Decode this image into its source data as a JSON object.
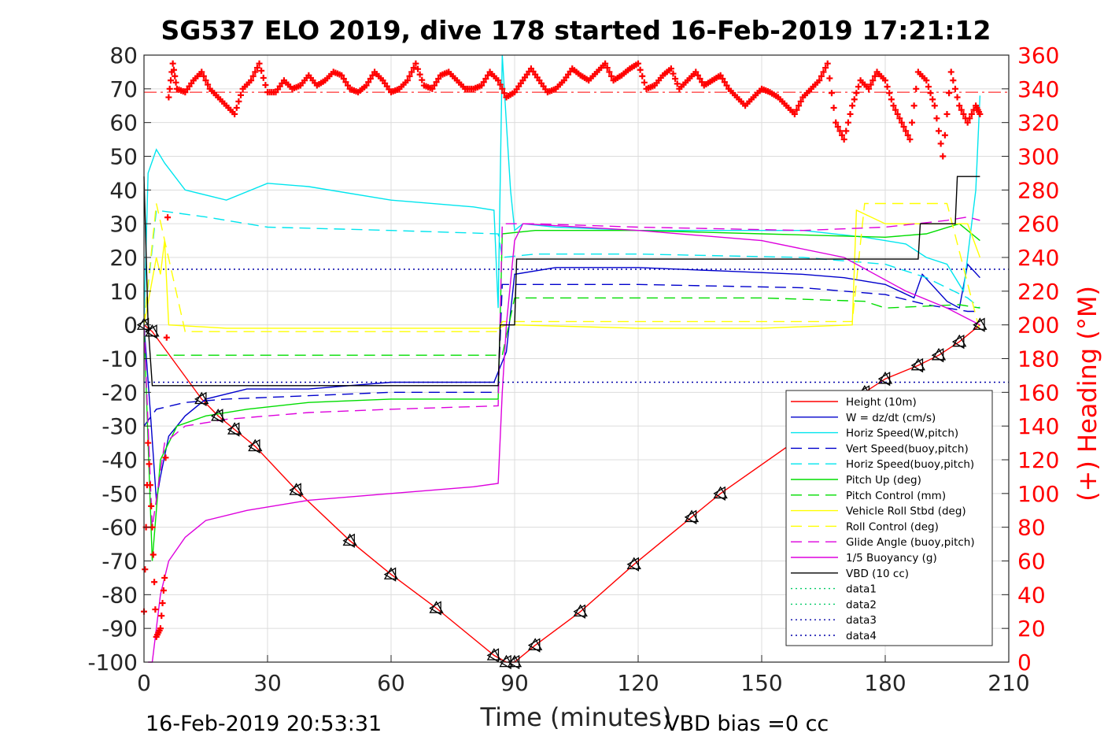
{
  "chart_data": {
    "type": "line",
    "title": "SG537 ELO 2019, dive 178 started 16-Feb-2019 17:21:12",
    "xlabel": "Time (minutes)",
    "ylabel_right": "(+) Heading (°M)",
    "footer_left": "16-Feb-2019 20:53:31",
    "footer_right": "VBD bias =0 cc",
    "xlim": [
      0,
      210
    ],
    "ylim": [
      -100,
      80
    ],
    "y2lim": [
      0,
      360
    ],
    "xticks": [
      0,
      30,
      60,
      90,
      120,
      150,
      180,
      210
    ],
    "yticks": [
      -100,
      -90,
      -80,
      -70,
      -60,
      -50,
      -40,
      -30,
      -20,
      -10,
      0,
      10,
      20,
      30,
      40,
      50,
      60,
      70,
      80
    ],
    "y2ticks": [
      0,
      20,
      40,
      60,
      80,
      100,
      120,
      140,
      160,
      180,
      200,
      220,
      240,
      260,
      280,
      300,
      320,
      340,
      360
    ],
    "grid": true,
    "legend_position": "lower-right",
    "heading_reference": 338,
    "colors": {
      "heading": "#ff0000",
      "axis_right": "#ff0000",
      "axis": "#262626"
    },
    "series": [
      {
        "name": "Height (10m)",
        "color": "#ff0000",
        "dash": "",
        "x": [
          0,
          2,
          14,
          18,
          22,
          27,
          37,
          50,
          60,
          71,
          85,
          88,
          90,
          95,
          106,
          119,
          133,
          140,
          175,
          180,
          188,
          193,
          198,
          203
        ],
        "y": [
          0,
          -2,
          -22,
          -27,
          -31,
          -36,
          -49,
          -64,
          -74,
          -84,
          -98,
          -100,
          -100,
          -95,
          -85,
          -71,
          -57,
          -50,
          -20,
          -16,
          -12,
          -9,
          -5,
          0
        ]
      },
      {
        "name": "W = dz/dt (cm/s)",
        "color": "#0000cc",
        "dash": "",
        "x": [
          0,
          1.5,
          3,
          4,
          6,
          10,
          15,
          25,
          40,
          60,
          80,
          85,
          88,
          90,
          100,
          120,
          140,
          160,
          170,
          180,
          187,
          189,
          195,
          198,
          200,
          203
        ],
        "y": [
          0,
          -25,
          -52,
          -45,
          -33,
          -27,
          -22,
          -19,
          -19,
          -17,
          -17,
          -17,
          -8,
          15,
          17,
          17,
          16,
          15,
          14,
          12,
          8,
          15,
          7,
          5,
          18,
          14
        ]
      },
      {
        "name": "Horiz Speed(W,pitch)",
        "color": "#00e5ee",
        "dash": "",
        "x": [
          0,
          1,
          3,
          5,
          10,
          20,
          30,
          40,
          60,
          80,
          85,
          86,
          87,
          88,
          89,
          90,
          92,
          100,
          120,
          140,
          160,
          175,
          185,
          190,
          195,
          199,
          202,
          203
        ],
        "y": [
          0,
          45,
          52,
          48,
          40,
          37,
          42,
          41,
          37,
          35,
          34,
          5,
          80,
          60,
          40,
          28,
          30,
          29,
          28,
          28,
          28,
          26,
          24,
          20,
          18,
          10,
          40,
          68
        ]
      },
      {
        "name": "Vert Speed(buoy,pitch)",
        "color": "#0000cc",
        "dash": "14,8",
        "x": [
          0,
          3,
          10,
          20,
          40,
          60,
          86,
          87,
          95,
          120,
          160,
          180,
          190,
          195,
          200,
          203
        ],
        "y": [
          -30,
          -25,
          -23,
          -22,
          -21,
          -20,
          -20,
          12,
          12,
          12,
          11,
          9,
          6,
          5,
          4,
          4
        ]
      },
      {
        "name": "Horiz Speed(buoy,pitch)",
        "color": "#00e5ee",
        "dash": "14,8",
        "x": [
          0,
          3,
          15,
          30,
          60,
          86,
          87,
          95,
          120,
          160,
          180,
          190,
          200,
          203
        ],
        "y": [
          0,
          34,
          32,
          29,
          28,
          27,
          20,
          21,
          21,
          20,
          18,
          14,
          8,
          5
        ]
      },
      {
        "name": "Pitch Up (deg)",
        "color": "#00dd00",
        "dash": "",
        "x": [
          0,
          2,
          4,
          8,
          15,
          25,
          40,
          60,
          86,
          87,
          95,
          120,
          150,
          180,
          190,
          198,
          203
        ],
        "y": [
          0,
          -70,
          -40,
          -30,
          -27,
          -25,
          -23,
          -22,
          -22,
          27,
          28,
          28,
          27,
          26,
          27,
          30,
          25
        ]
      },
      {
        "name": "Pitch Control (mm)",
        "color": "#00dd00",
        "dash": "14,8",
        "x": [
          3,
          86,
          87,
          90,
          150,
          175,
          180,
          198,
          203
        ],
        "y": [
          -9,
          -9,
          -9,
          8,
          8,
          7,
          5,
          6,
          5
        ]
      },
      {
        "name": "Vehicle Roll Stbd (deg)",
        "color": "#ffff00",
        "dash": "",
        "x": [
          0,
          3,
          4,
          5,
          6,
          20,
          40,
          86,
          88,
          90,
          120,
          150,
          172,
          173,
          180,
          190,
          200,
          203
        ],
        "y": [
          0,
          20,
          15,
          25,
          0,
          -1,
          -1,
          -1,
          0,
          0,
          -1,
          -1,
          0,
          34,
          30,
          30,
          30,
          20
        ]
      },
      {
        "name": "Roll Control (deg)",
        "color": "#ffff00",
        "dash": "14,8",
        "x": [
          0,
          3,
          10,
          40,
          86,
          87,
          95,
          150,
          172,
          175,
          195,
          203
        ],
        "y": [
          0,
          36,
          -2,
          -2,
          -2,
          1,
          1,
          1,
          1,
          36,
          36,
          -2
        ]
      },
      {
        "name": "Glide Angle (buoy,pitch)",
        "color": "#dd00dd",
        "dash": "14,8",
        "x": [
          0,
          2,
          5,
          10,
          20,
          40,
          60,
          86,
          87,
          95,
          120,
          160,
          180,
          195,
          200,
          203
        ],
        "y": [
          0,
          -60,
          -35,
          -30,
          -28,
          -26,
          -25,
          -24,
          30,
          30,
          29,
          28,
          29,
          31,
          32,
          31
        ]
      },
      {
        "name": "1/5 Buoyancy (g)",
        "color": "#dd00dd",
        "dash": "",
        "x": [
          1,
          2,
          4,
          6,
          10,
          15,
          25,
          40,
          60,
          80,
          86,
          87,
          88,
          90,
          92,
          120,
          150,
          170,
          185,
          195,
          203
        ],
        "y": [
          -100,
          -100,
          -80,
          -70,
          -63,
          -58,
          -55,
          -52,
          -50,
          -48,
          -47,
          -20,
          0,
          25,
          30,
          28,
          25,
          20,
          10,
          5,
          0
        ]
      },
      {
        "name": "VBD (10 cc)",
        "color": "#000000",
        "dash": "",
        "x": [
          0,
          1,
          2,
          86,
          86.5,
          90,
          90.5,
          188,
          188.5,
          197,
          197.5,
          203
        ],
        "y": [
          44,
          0,
          -18,
          -18,
          0,
          0,
          19.5,
          19.5,
          30,
          30,
          44,
          44
        ]
      },
      {
        "name": "data1",
        "color": "#00cc66",
        "dash": "2,4",
        "x": [],
        "y": []
      },
      {
        "name": "data2",
        "color": "#00cc66",
        "dash": "2,4",
        "x": [],
        "y": []
      },
      {
        "name": "data3",
        "color": "#0000aa",
        "dash": "2,4",
        "x": [
          0,
          210
        ],
        "y": [
          16.5,
          16.5
        ]
      },
      {
        "name": "data4",
        "color": "#0000aa",
        "dash": "2,4",
        "x": [
          0,
          210
        ],
        "y": [
          -17,
          -17
        ]
      }
    ],
    "heading_series": {
      "color": "#ff0000",
      "x": [
        0,
        1,
        2,
        3,
        4,
        5,
        6,
        7,
        8,
        10,
        12,
        14,
        16,
        18,
        20,
        22,
        24,
        26,
        28,
        30,
        32,
        34,
        36,
        38,
        40,
        42,
        44,
        46,
        48,
        50,
        52,
        54,
        56,
        58,
        60,
        62,
        64,
        66,
        68,
        70,
        72,
        74,
        76,
        78,
        80,
        82,
        84,
        86,
        88,
        90,
        92,
        94,
        96,
        98,
        100,
        102,
        104,
        106,
        108,
        110,
        112,
        114,
        116,
        118,
        120,
        122,
        124,
        126,
        128,
        130,
        132,
        134,
        136,
        138,
        140,
        142,
        144,
        146,
        148,
        150,
        152,
        154,
        156,
        158,
        160,
        162,
        164,
        166,
        168,
        170,
        172,
        174,
        176,
        178,
        180,
        182,
        184,
        186,
        188,
        190,
        192,
        194,
        196,
        198,
        200,
        202,
        203
      ],
      "y": [
        30,
        130,
        80,
        15,
        20,
        50,
        335,
        355,
        340,
        338,
        345,
        350,
        340,
        335,
        330,
        325,
        340,
        345,
        355,
        338,
        338,
        345,
        340,
        342,
        348,
        342,
        345,
        350,
        348,
        340,
        338,
        342,
        350,
        345,
        338,
        340,
        345,
        355,
        342,
        340,
        348,
        350,
        345,
        340,
        340,
        342,
        350,
        345,
        335,
        338,
        345,
        352,
        345,
        338,
        340,
        345,
        352,
        348,
        345,
        350,
        355,
        345,
        348,
        352,
        355,
        340,
        342,
        348,
        352,
        340,
        345,
        350,
        342,
        345,
        348,
        340,
        335,
        330,
        335,
        340,
        338,
        335,
        330,
        325,
        335,
        340,
        345,
        355,
        320,
        310,
        330,
        345,
        340,
        350,
        345,
        330,
        320,
        310,
        350,
        345,
        330,
        300,
        350,
        330,
        320,
        330,
        325
      ]
    }
  }
}
